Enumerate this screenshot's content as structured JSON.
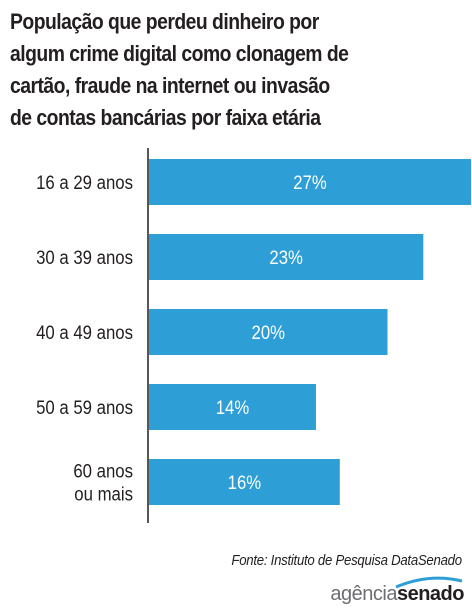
{
  "title_lines": [
    "População que perdeu dinheiro por",
    "algum crime digital como clonagem de",
    "cartão, fraude na internet ou invasão",
    "de contas bancárias por faixa etária"
  ],
  "source": "Fonte: Instituto de Pesquisa DataSenado",
  "brand": {
    "part1": "agência",
    "part2": "senado"
  },
  "colors": {
    "bar": "#2d9fd6",
    "bar_text": "#ffffff",
    "axis": "#231f20"
  },
  "chart_data": {
    "type": "bar",
    "orientation": "horizontal",
    "categories": [
      [
        "16 a 29 anos"
      ],
      [
        "30 a 39 anos"
      ],
      [
        "40 a 49 anos"
      ],
      [
        "50 a 59 anos"
      ],
      [
        "60 anos",
        "ou mais"
      ]
    ],
    "values": [
      27,
      23,
      20,
      14,
      16
    ],
    "value_labels": [
      "27%",
      "23%",
      "20%",
      "14%",
      "16%"
    ],
    "unit": "%",
    "xlim": [
      0,
      27
    ],
    "grid": false
  }
}
